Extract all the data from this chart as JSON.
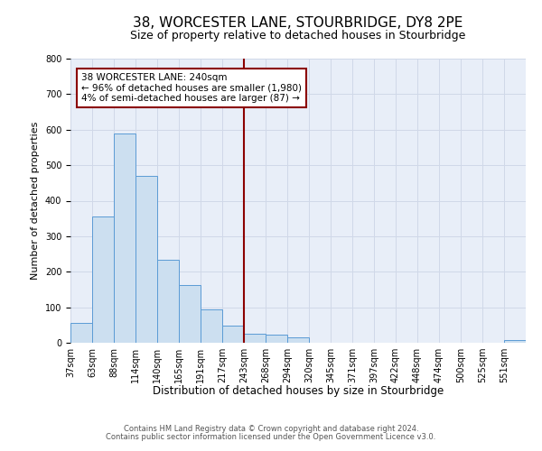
{
  "title": "38, WORCESTER LANE, STOURBRIDGE, DY8 2PE",
  "subtitle": "Size of property relative to detached houses in Stourbridge",
  "xlabel": "Distribution of detached houses by size in Stourbridge",
  "ylabel": "Number of detached properties",
  "bar_labels": [
    "37sqm",
    "63sqm",
    "88sqm",
    "114sqm",
    "140sqm",
    "165sqm",
    "191sqm",
    "217sqm",
    "243sqm",
    "268sqm",
    "294sqm",
    "320sqm",
    "345sqm",
    "371sqm",
    "397sqm",
    "422sqm",
    "448sqm",
    "474sqm",
    "500sqm",
    "525sqm",
    "551sqm"
  ],
  "bar_values": [
    57,
    355,
    590,
    470,
    233,
    163,
    95,
    48,
    25,
    22,
    15,
    0,
    0,
    0,
    0,
    0,
    0,
    0,
    0,
    0,
    8
  ],
  "bar_color": "#ccdff0",
  "bar_edge_color": "#5b9bd5",
  "vline_x": 8,
  "vline_color": "#8b0000",
  "annotation_text": "38 WORCESTER LANE: 240sqm\n← 96% of detached houses are smaller (1,980)\n4% of semi-detached houses are larger (87) →",
  "annotation_box_color": "#ffffff",
  "annotation_box_edge": "#8b0000",
  "ylim": [
    0,
    800
  ],
  "yticks": [
    0,
    100,
    200,
    300,
    400,
    500,
    600,
    700,
    800
  ],
  "grid_color": "#d0d8e8",
  "bg_color": "#e8eef8",
  "footer1": "Contains HM Land Registry data © Crown copyright and database right 2024.",
  "footer2": "Contains public sector information licensed under the Open Government Licence v3.0.",
  "title_fontsize": 11,
  "subtitle_fontsize": 9,
  "ylabel_fontsize": 8,
  "xlabel_fontsize": 8.5,
  "tick_fontsize": 7,
  "annotation_fontsize": 7.5,
  "footer_fontsize": 6
}
